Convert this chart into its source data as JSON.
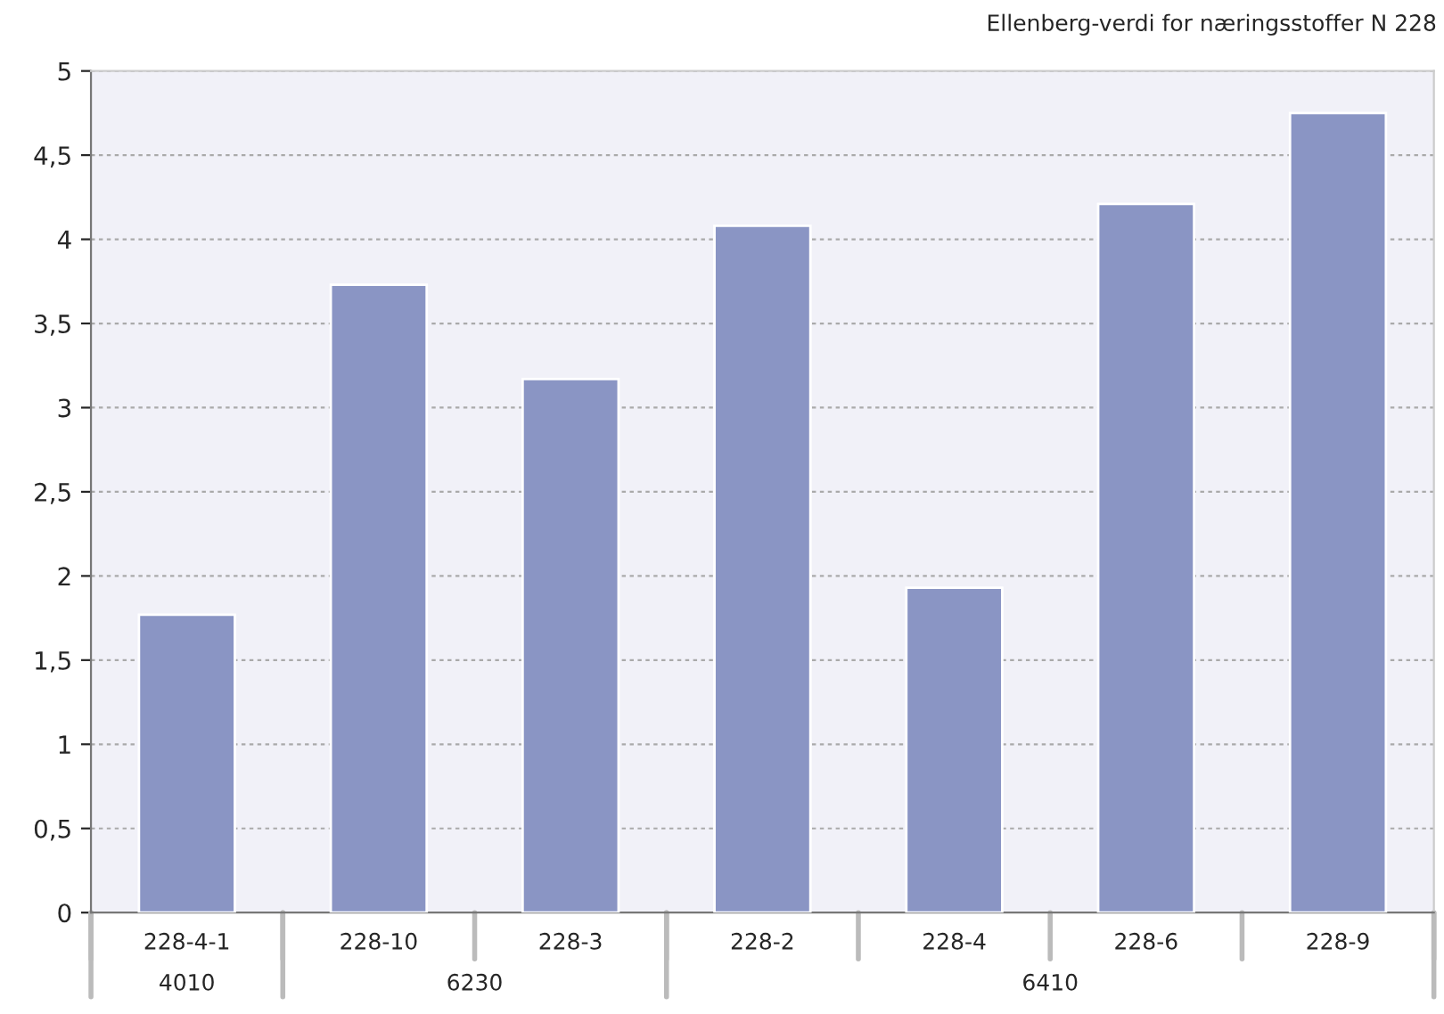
{
  "chart_data": {
    "type": "bar",
    "title": "Ellenberg-verdi for næringsstoffer N 228",
    "categories": [
      "228-4-1",
      "228-10",
      "228-3",
      "228-2",
      "228-4",
      "228-6",
      "228-9"
    ],
    "values": [
      1.77,
      3.73,
      3.17,
      4.08,
      1.93,
      4.21,
      4.75
    ],
    "color": "#8a95c4",
    "ylim": [
      0,
      5
    ],
    "yticks": [
      0,
      {
        "value": 0.5,
        "label": "0,5"
      },
      1,
      {
        "value": 1.5,
        "label": "1,5"
      },
      2,
      {
        "value": 2.5,
        "label": "2,5"
      },
      3,
      {
        "value": 3.5,
        "label": "3,5"
      },
      4,
      {
        "value": 4.5,
        "label": "4,5"
      },
      5
    ],
    "grid": "y",
    "annotations": [
      "4010",
      "6230",
      "6410"
    ]
  }
}
